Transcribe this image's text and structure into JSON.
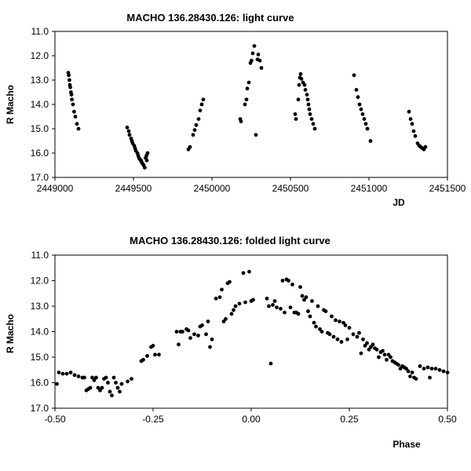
{
  "chart_data": [
    {
      "type": "scatter",
      "title": "MACHO 136.28430.126: light curve",
      "xlabel": "JD",
      "ylabel": "R Macho",
      "xlim": [
        2449000,
        2451500
      ],
      "ylim": [
        11.0,
        17.0
      ],
      "y_inverted": true,
      "grid": false,
      "x_ticks": [
        "2449000",
        "2449500",
        "2450000",
        "2450500",
        "2451000",
        "2451500"
      ],
      "y_ticks": [
        "11.0",
        "12.0",
        "13.0",
        "14.0",
        "15.0",
        "16.0",
        "17.0"
      ],
      "marker_color": "#000000",
      "points": [
        [
          2449085,
          12.7
        ],
        [
          2449088,
          12.8
        ],
        [
          2449092,
          13.0
        ],
        [
          2449095,
          13.2
        ],
        [
          2449098,
          13.3
        ],
        [
          2449102,
          13.5
        ],
        [
          2449105,
          13.6
        ],
        [
          2449108,
          13.8
        ],
        [
          2449115,
          14.0
        ],
        [
          2449122,
          14.3
        ],
        [
          2449130,
          14.5
        ],
        [
          2449140,
          14.8
        ],
        [
          2449150,
          15.0
        ],
        [
          2449460,
          14.95
        ],
        [
          2449470,
          15.1
        ],
        [
          2449475,
          15.25
        ],
        [
          2449485,
          15.4
        ],
        [
          2449490,
          15.5
        ],
        [
          2449495,
          15.6
        ],
        [
          2449505,
          15.7
        ],
        [
          2449510,
          15.8
        ],
        [
          2449515,
          15.9
        ],
        [
          2449525,
          16.0
        ],
        [
          2449530,
          16.1
        ],
        [
          2449535,
          16.2
        ],
        [
          2449540,
          16.25
        ],
        [
          2449548,
          16.3
        ],
        [
          2449550,
          16.35
        ],
        [
          2449555,
          16.4
        ],
        [
          2449560,
          16.45
        ],
        [
          2449565,
          16.5
        ],
        [
          2449572,
          16.6
        ],
        [
          2449578,
          16.2
        ],
        [
          2449583,
          16.1
        ],
        [
          2449590,
          16.0
        ],
        [
          2449585,
          16.3
        ],
        [
          2449850,
          15.85
        ],
        [
          2449860,
          15.75
        ],
        [
          2449880,
          15.25
        ],
        [
          2449890,
          15.05
        ],
        [
          2449900,
          14.85
        ],
        [
          2449915,
          14.6
        ],
        [
          2449925,
          14.25
        ],
        [
          2449935,
          14.0
        ],
        [
          2449945,
          13.8
        ],
        [
          2450180,
          14.6
        ],
        [
          2450185,
          14.7
        ],
        [
          2450210,
          14.0
        ],
        [
          2450220,
          13.8
        ],
        [
          2450225,
          13.35
        ],
        [
          2450235,
          13.1
        ],
        [
          2450245,
          12.3
        ],
        [
          2450252,
          12.2
        ],
        [
          2450260,
          11.9
        ],
        [
          2450270,
          11.6
        ],
        [
          2450280,
          15.25
        ],
        [
          2450290,
          12.15
        ],
        [
          2450295,
          11.95
        ],
        [
          2450305,
          12.2
        ],
        [
          2450315,
          12.5
        ],
        [
          2450530,
          14.4
        ],
        [
          2450535,
          14.6
        ],
        [
          2450550,
          13.8
        ],
        [
          2450555,
          13.2
        ],
        [
          2450560,
          12.9
        ],
        [
          2450565,
          12.75
        ],
        [
          2450570,
          12.95
        ],
        [
          2450580,
          13.1
        ],
        [
          2450590,
          13.2
        ],
        [
          2450595,
          13.4
        ],
        [
          2450605,
          13.6
        ],
        [
          2450610,
          13.8
        ],
        [
          2450615,
          14.0
        ],
        [
          2450620,
          14.2
        ],
        [
          2450625,
          14.4
        ],
        [
          2450635,
          14.6
        ],
        [
          2450645,
          14.8
        ],
        [
          2450655,
          15.0
        ],
        [
          2450905,
          12.8
        ],
        [
          2450920,
          13.4
        ],
        [
          2450930,
          13.7
        ],
        [
          2450940,
          14.0
        ],
        [
          2450950,
          14.2
        ],
        [
          2450960,
          14.4
        ],
        [
          2450970,
          14.6
        ],
        [
          2450980,
          14.8
        ],
        [
          2450990,
          15.0
        ],
        [
          2451010,
          15.5
        ],
        [
          2451255,
          14.3
        ],
        [
          2451265,
          14.6
        ],
        [
          2451275,
          14.8
        ],
        [
          2451285,
          15.1
        ],
        [
          2451295,
          15.3
        ],
        [
          2451310,
          15.6
        ],
        [
          2451320,
          15.7
        ],
        [
          2451330,
          15.75
        ],
        [
          2451340,
          15.8
        ],
        [
          2451350,
          15.85
        ],
        [
          2451360,
          15.75
        ]
      ]
    },
    {
      "type": "scatter",
      "title": "MACHO 136.28430.126: folded light curve",
      "xlabel": "Phase",
      "ylabel": "R Macho",
      "xlim": [
        -0.5,
        0.5
      ],
      "ylim": [
        11.0,
        17.0
      ],
      "y_inverted": true,
      "grid": false,
      "x_ticks": [
        "-0.50",
        "-0.25",
        "0.00",
        "0.25",
        "0.50"
      ],
      "y_ticks": [
        "11.0",
        "12.0",
        "13.0",
        "14.0",
        "15.0",
        "16.0",
        "17.0"
      ],
      "marker_color": "#000000",
      "points": [
        [
          -0.495,
          16.05
        ],
        [
          -0.49,
          15.6
        ],
        [
          -0.48,
          15.65
        ],
        [
          -0.47,
          15.65
        ],
        [
          -0.46,
          15.6
        ],
        [
          -0.45,
          15.7
        ],
        [
          -0.44,
          15.75
        ],
        [
          -0.43,
          15.8
        ],
        [
          -0.425,
          15.8
        ],
        [
          -0.42,
          16.3
        ],
        [
          -0.415,
          16.25
        ],
        [
          -0.41,
          16.2
        ],
        [
          -0.405,
          15.8
        ],
        [
          -0.4,
          15.9
        ],
        [
          -0.395,
          15.8
        ],
        [
          -0.39,
          16.2
        ],
        [
          -0.385,
          16.3
        ],
        [
          -0.38,
          16.2
        ],
        [
          -0.375,
          15.85
        ],
        [
          -0.37,
          15.8
        ],
        [
          -0.365,
          16.0
        ],
        [
          -0.36,
          16.35
        ],
        [
          -0.355,
          16.5
        ],
        [
          -0.35,
          15.8
        ],
        [
          -0.345,
          16.0
        ],
        [
          -0.34,
          16.2
        ],
        [
          -0.335,
          16.35
        ],
        [
          -0.33,
          16.05
        ],
        [
          -0.315,
          15.95
        ],
        [
          -0.305,
          15.85
        ],
        [
          -0.28,
          15.15
        ],
        [
          -0.275,
          15.1
        ],
        [
          -0.265,
          14.95
        ],
        [
          -0.255,
          14.6
        ],
        [
          -0.25,
          14.55
        ],
        [
          -0.245,
          14.9
        ],
        [
          -0.235,
          14.9
        ],
        [
          -0.19,
          14.0
        ],
        [
          -0.185,
          14.5
        ],
        [
          -0.18,
          14.0
        ],
        [
          -0.175,
          14.0
        ],
        [
          -0.165,
          13.9
        ],
        [
          -0.16,
          13.95
        ],
        [
          -0.155,
          14.25
        ],
        [
          -0.145,
          14.1
        ],
        [
          -0.135,
          14.15
        ],
        [
          -0.13,
          13.8
        ],
        [
          -0.125,
          13.75
        ],
        [
          -0.115,
          14.1
        ],
        [
          -0.11,
          13.6
        ],
        [
          -0.1,
          14.3
        ],
        [
          -0.105,
          14.6
        ],
        [
          -0.09,
          12.7
        ],
        [
          -0.08,
          12.65
        ],
        [
          -0.075,
          12.35
        ],
        [
          -0.06,
          12.1
        ],
        [
          -0.055,
          12.05
        ],
        [
          -0.07,
          13.6
        ],
        [
          -0.065,
          13.5
        ],
        [
          -0.05,
          13.3
        ],
        [
          -0.045,
          13.15
        ],
        [
          -0.04,
          13.0
        ],
        [
          -0.03,
          12.9
        ],
        [
          -0.02,
          11.7
        ],
        [
          -0.015,
          12.85
        ],
        [
          -0.005,
          11.65
        ],
        [
          0.0,
          12.8
        ],
        [
          0.005,
          12.75
        ],
        [
          0.04,
          12.7
        ],
        [
          0.045,
          13.0
        ],
        [
          0.05,
          15.25
        ],
        [
          0.055,
          12.95
        ],
        [
          0.06,
          12.8
        ],
        [
          0.065,
          13.05
        ],
        [
          0.075,
          13.1
        ],
        [
          0.08,
          12.0
        ],
        [
          0.085,
          13.25
        ],
        [
          0.09,
          11.95
        ],
        [
          0.095,
          12.0
        ],
        [
          0.1,
          13.05
        ],
        [
          0.105,
          12.15
        ],
        [
          0.11,
          13.25
        ],
        [
          0.115,
          13.25
        ],
        [
          0.12,
          13.3
        ],
        [
          0.125,
          12.25
        ],
        [
          0.13,
          12.6
        ],
        [
          0.135,
          12.75
        ],
        [
          0.14,
          12.65
        ],
        [
          0.145,
          13.2
        ],
        [
          0.15,
          13.4
        ],
        [
          0.155,
          12.8
        ],
        [
          0.16,
          13.65
        ],
        [
          0.165,
          13.8
        ],
        [
          0.17,
          13.0
        ],
        [
          0.175,
          13.9
        ],
        [
          0.18,
          14.0
        ],
        [
          0.185,
          13.15
        ],
        [
          0.19,
          13.2
        ],
        [
          0.195,
          14.05
        ],
        [
          0.2,
          14.1
        ],
        [
          0.205,
          13.4
        ],
        [
          0.21,
          14.2
        ],
        [
          0.215,
          13.55
        ],
        [
          0.22,
          14.3
        ],
        [
          0.225,
          13.6
        ],
        [
          0.23,
          14.4
        ],
        [
          0.235,
          13.65
        ],
        [
          0.24,
          13.75
        ],
        [
          0.245,
          14.3
        ],
        [
          0.25,
          13.85
        ],
        [
          0.26,
          14.1
        ],
        [
          0.27,
          14.2
        ],
        [
          0.275,
          14.05
        ],
        [
          0.28,
          14.85
        ],
        [
          0.285,
          14.3
        ],
        [
          0.29,
          14.55
        ],
        [
          0.295,
          14.45
        ],
        [
          0.3,
          14.7
        ],
        [
          0.305,
          14.6
        ],
        [
          0.31,
          14.5
        ],
        [
          0.315,
          14.65
        ],
        [
          0.32,
          14.7
        ],
        [
          0.325,
          15.0
        ],
        [
          0.33,
          14.8
        ],
        [
          0.335,
          14.75
        ],
        [
          0.34,
          14.9
        ],
        [
          0.345,
          15.1
        ],
        [
          0.35,
          14.9
        ],
        [
          0.355,
          15.0
        ],
        [
          0.36,
          15.15
        ],
        [
          0.365,
          15.2
        ],
        [
          0.37,
          15.25
        ],
        [
          0.375,
          15.3
        ],
        [
          0.38,
          15.45
        ],
        [
          0.385,
          15.35
        ],
        [
          0.39,
          15.4
        ],
        [
          0.395,
          15.45
        ],
        [
          0.4,
          15.55
        ],
        [
          0.405,
          15.75
        ],
        [
          0.41,
          15.6
        ],
        [
          0.415,
          15.8
        ],
        [
          0.42,
          15.85
        ],
        [
          0.43,
          15.35
        ],
        [
          0.44,
          15.45
        ],
        [
          0.45,
          15.4
        ],
        [
          0.455,
          15.8
        ],
        [
          0.46,
          15.45
        ],
        [
          0.47,
          15.45
        ],
        [
          0.48,
          15.5
        ],
        [
          0.49,
          15.55
        ],
        [
          0.5,
          15.6
        ]
      ]
    }
  ]
}
